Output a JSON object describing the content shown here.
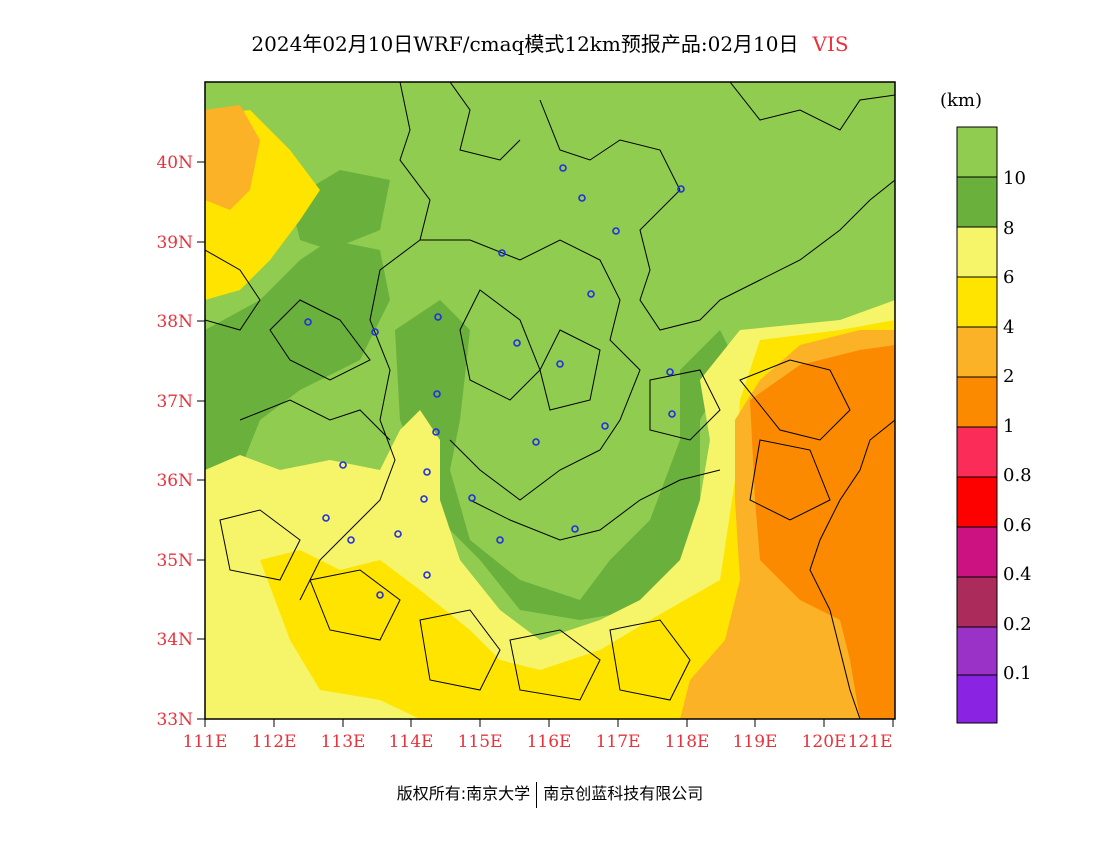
{
  "title": {
    "text": "2024年02月10日WRF/cmaq模式12km预报产品:02月10日",
    "variable": "VIS"
  },
  "colors": {
    "background_land": "#8fcc4f",
    "dark_green": "#6ab03c",
    "light_yellow": "#f6f56a",
    "yellow": "#ffe400",
    "light_orange": "#fbb227",
    "orange": "#fb8a00"
  },
  "map": {
    "lon_range": [
      111,
      121.4
    ],
    "lat_range": [
      33,
      41
    ],
    "x_ticks": [
      "111E",
      "112E",
      "113E",
      "114E",
      "115E",
      "116E",
      "117E",
      "118E",
      "119E",
      "120E",
      "121E"
    ],
    "y_ticks": [
      "33N",
      "34N",
      "35N",
      "36N",
      "37N",
      "38N",
      "39N",
      "40N"
    ],
    "city_marker_icon": "location-ring-icon"
  },
  "legend": {
    "unit": "(km)",
    "colors": [
      "#8fcc4f",
      "#6ab03c",
      "#f6f56a",
      "#ffe400",
      "#fbb227",
      "#fb8a00",
      "#fb2d58",
      "#fd0000",
      "#cc1280",
      "#ab2c5b",
      "#9b32c8",
      "#8b24e2"
    ],
    "labels": [
      "10",
      "8",
      "6",
      "4",
      "2",
      "1",
      "0.8",
      "0.6",
      "0.4",
      "0.2",
      "0.1"
    ]
  },
  "footer": {
    "left": "版权所有:南京大学",
    "right": "南京创蓝科技有限公司"
  }
}
